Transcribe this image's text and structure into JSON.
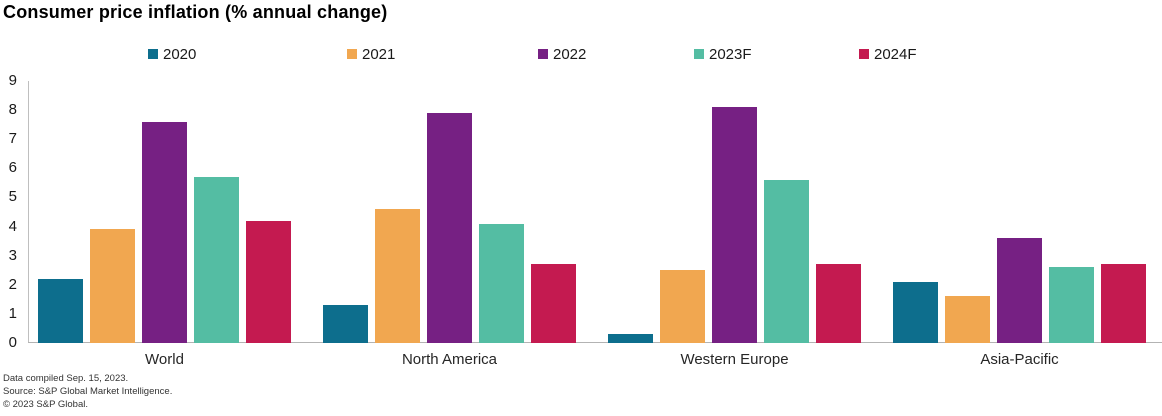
{
  "title": "Consumer price inflation (% annual change)",
  "footer": {
    "compiled": "Data compiled Sep. 15, 2023.",
    "source": "Source: S&P Global Market Intelligence.",
    "copyright": "© 2023 S&P Global."
  },
  "chart_data": {
    "type": "bar",
    "title": "Consumer price inflation (% annual change)",
    "categories": [
      "World",
      "North America",
      "Western Europe",
      "Asia-Pacific"
    ],
    "series": [
      {
        "name": "2020",
        "color": "#0d6e8d",
        "values": [
          2.2,
          1.3,
          0.3,
          2.1
        ]
      },
      {
        "name": "2021",
        "color": "#f1a750",
        "values": [
          3.9,
          4.6,
          2.5,
          1.6
        ]
      },
      {
        "name": "2022",
        "color": "#762083",
        "values": [
          7.6,
          7.9,
          8.1,
          3.6
        ]
      },
      {
        "name": "2023F",
        "color": "#54bda3",
        "values": [
          5.7,
          4.1,
          5.6,
          2.6
        ]
      },
      {
        "name": "2024F",
        "color": "#c41a50",
        "values": [
          4.2,
          2.7,
          2.7,
          2.7
        ]
      }
    ],
    "xlabel": "",
    "ylabel": "",
    "ylim": [
      0,
      9
    ],
    "yticks": [
      0,
      1,
      2,
      3,
      4,
      5,
      6,
      7,
      8,
      9
    ],
    "grid": false,
    "legend_position": "top"
  }
}
